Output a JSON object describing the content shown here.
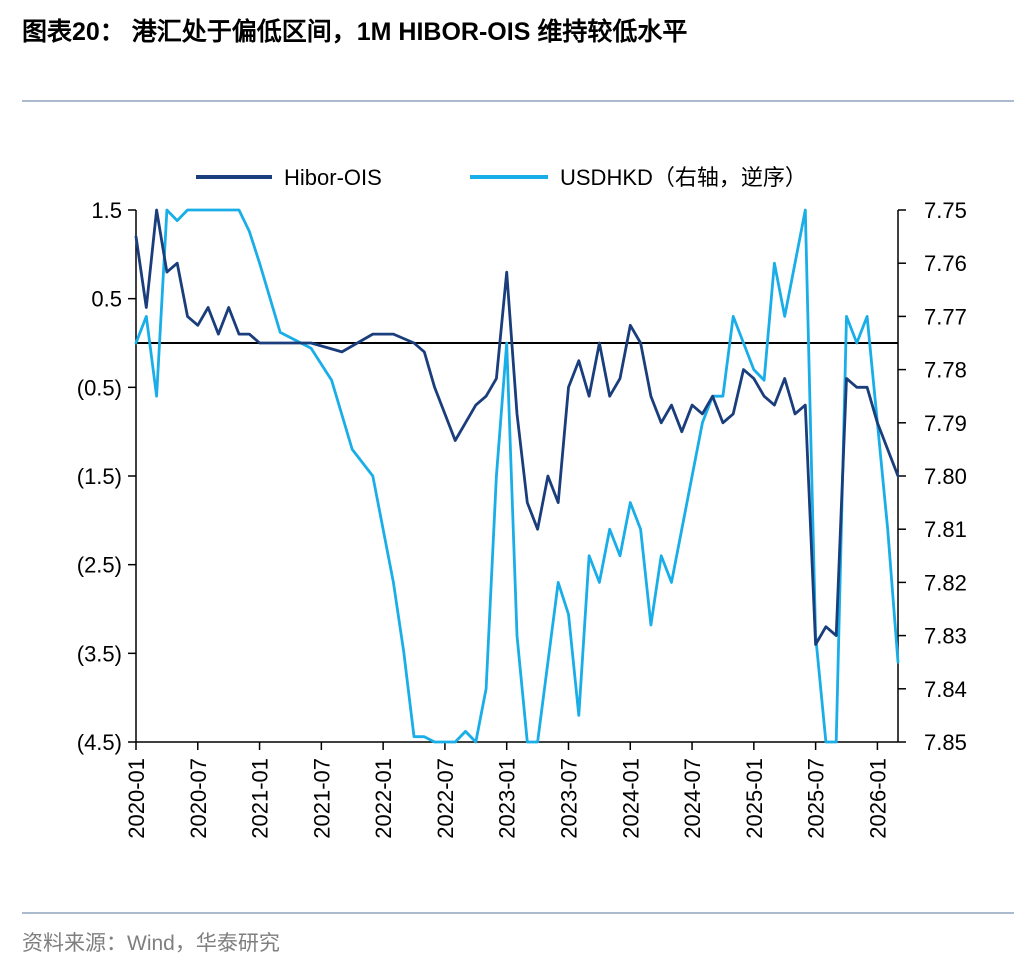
{
  "header": {
    "title": "图表20：  港汇处于偏低区间，1M HIBOR-OIS 维持较低水平"
  },
  "footer": {
    "source": "资料来源：Wind，华泰研究"
  },
  "colors": {
    "hibor_ois": "#1a3d7c",
    "usdhkd": "#19aee8",
    "zero_line": "#000000",
    "rule": "#a9bbcc"
  },
  "chart_data": {
    "type": "line",
    "title": "",
    "x_ticks": [
      "2020-01",
      "2020-07",
      "2021-01",
      "2021-07",
      "2022-01",
      "2022-07",
      "2023-01",
      "2023-07",
      "2024-01",
      "2024-07",
      "2025-01",
      "2025-07",
      "2026-01"
    ],
    "y_left": {
      "ticks": [
        "1.5",
        "0.5",
        "(0.5)",
        "(1.5)",
        "(2.5)",
        "(3.5)",
        "(4.5)"
      ],
      "range": [
        -4.5,
        1.5
      ]
    },
    "y_right": {
      "ticks": [
        "7.75",
        "7.76",
        "7.77",
        "7.78",
        "7.79",
        "7.80",
        "7.81",
        "7.82",
        "7.83",
        "7.84",
        "7.85"
      ],
      "range": [
        7.75,
        7.85
      ],
      "reversed": true
    },
    "legend": {
      "placement": "top"
    },
    "series": [
      {
        "name": "Hibor-OIS",
        "axis": "left",
        "x": [
          "2020-01",
          "2020-02",
          "2020-03",
          "2020-04",
          "2020-05",
          "2020-06",
          "2020-07",
          "2020-08",
          "2020-09",
          "2020-10",
          "2020-11",
          "2020-12",
          "2021-01",
          "2021-03",
          "2021-06",
          "2021-09",
          "2021-12",
          "2022-02",
          "2022-04",
          "2022-05",
          "2022-06",
          "2022-07",
          "2022-08",
          "2022-09",
          "2022-10",
          "2022-11",
          "2022-12",
          "2023-01",
          "2023-02",
          "2023-03",
          "2023-04",
          "2023-05",
          "2023-06",
          "2023-07",
          "2023-08",
          "2023-09",
          "2023-10",
          "2023-11",
          "2023-12",
          "2024-01",
          "2024-02",
          "2024-03",
          "2024-04",
          "2024-05",
          "2024-06",
          "2024-07",
          "2024-08",
          "2024-09",
          "2024-10",
          "2024-11",
          "2024-12",
          "2025-01",
          "2025-02",
          "2025-03",
          "2025-04",
          "2025-05",
          "2025-06",
          "2025-07",
          "2025-08",
          "2025-09",
          "2025-10",
          "2025-11",
          "2025-12",
          "2026-01",
          "2026-02",
          "2026-03"
        ],
        "values": [
          1.2,
          0.4,
          1.5,
          0.8,
          0.9,
          0.3,
          0.2,
          0.4,
          0.1,
          0.4,
          0.1,
          0.1,
          0.0,
          0.0,
          0.0,
          -0.1,
          0.1,
          0.1,
          0.0,
          -0.1,
          -0.5,
          -0.8,
          -1.1,
          -0.9,
          -0.7,
          -0.6,
          -0.4,
          0.8,
          -0.8,
          -1.8,
          -2.1,
          -1.5,
          -1.8,
          -0.5,
          -0.2,
          -0.6,
          0.0,
          -0.6,
          -0.4,
          0.2,
          0.0,
          -0.6,
          -0.9,
          -0.7,
          -1.0,
          -0.7,
          -0.8,
          -0.6,
          -0.9,
          -0.8,
          -0.3,
          -0.4,
          -0.6,
          -0.7,
          -0.4,
          -0.8,
          -0.7,
          -3.4,
          -3.2,
          -3.3,
          -0.4,
          -0.5,
          -0.5,
          -0.9,
          -1.2,
          -1.5
        ],
        "width": 2.8
      },
      {
        "name": "USDHKD（右轴，逆序）",
        "axis": "right",
        "x": [
          "2020-01",
          "2020-02",
          "2020-03",
          "2020-04",
          "2020-05",
          "2020-06",
          "2020-07",
          "2020-08",
          "2020-09",
          "2020-10",
          "2020-11",
          "2020-12",
          "2021-01",
          "2021-03",
          "2021-06",
          "2021-08",
          "2021-10",
          "2021-12",
          "2022-02",
          "2022-03",
          "2022-04",
          "2022-05",
          "2022-06",
          "2022-07",
          "2022-08",
          "2022-09",
          "2022-10",
          "2022-11",
          "2022-12",
          "2023-01",
          "2023-02",
          "2023-03",
          "2023-04",
          "2023-05",
          "2023-06",
          "2023-07",
          "2023-08",
          "2023-09",
          "2023-10",
          "2023-11",
          "2023-12",
          "2024-01",
          "2024-02",
          "2024-03",
          "2024-04",
          "2024-05",
          "2024-06",
          "2024-07",
          "2024-08",
          "2024-09",
          "2024-10",
          "2024-11",
          "2024-12",
          "2025-01",
          "2025-02",
          "2025-03",
          "2025-04",
          "2025-05",
          "2025-06",
          "2025-07",
          "2025-08",
          "2025-09",
          "2025-10",
          "2025-11",
          "2025-12",
          "2026-01",
          "2026-02",
          "2026-03"
        ],
        "values": [
          7.775,
          7.77,
          7.785,
          7.75,
          7.752,
          7.75,
          7.75,
          7.75,
          7.75,
          7.75,
          7.75,
          7.754,
          7.76,
          7.773,
          7.776,
          7.782,
          7.795,
          7.8,
          7.82,
          7.833,
          7.849,
          7.849,
          7.85,
          7.85,
          7.85,
          7.848,
          7.85,
          7.84,
          7.8,
          7.775,
          7.83,
          7.85,
          7.85,
          7.835,
          7.82,
          7.826,
          7.845,
          7.815,
          7.82,
          7.81,
          7.815,
          7.805,
          7.81,
          7.828,
          7.815,
          7.82,
          7.81,
          7.8,
          7.79,
          7.785,
          7.785,
          7.77,
          7.775,
          7.78,
          7.782,
          7.76,
          7.77,
          7.76,
          7.75,
          7.83,
          7.85,
          7.85,
          7.77,
          7.775,
          7.77,
          7.79,
          7.81,
          7.835
        ],
        "width": 2.8
      }
    ]
  }
}
